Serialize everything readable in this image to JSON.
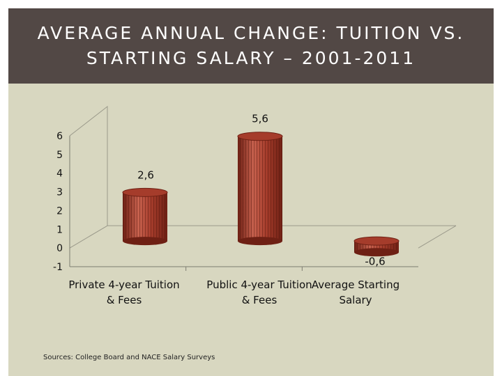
{
  "slide": {
    "title_line1": "AVERAGE ANNUAL CHANGE: TUITION VS.",
    "title_line2": "STARTING SALARY – 2001-2011",
    "source": "Sources: College Board and NACE Salary Surveys"
  },
  "colors": {
    "title_bg": "#524845",
    "chart_bg": "#d8d7c0",
    "bar": "#a53c2b",
    "bar_light": "#c8624f",
    "bar_dark": "#6e2014"
  },
  "chart_data": {
    "type": "bar",
    "style": "3d-cylinder",
    "categories": [
      [
        "Private 4-year Tuition",
        "& Fees"
      ],
      [
        "Public 4-year Tuition",
        "& Fees"
      ],
      [
        "Average Starting",
        "Salary"
      ]
    ],
    "values": [
      2.6,
      5.6,
      -0.6
    ],
    "data_labels": [
      "2,6",
      "5,6",
      "-0,6"
    ],
    "yticks": [
      "6",
      "5",
      "4",
      "3",
      "2",
      "1",
      "0",
      "-1"
    ],
    "ytick_values": [
      6,
      5,
      4,
      3,
      2,
      1,
      0,
      -1
    ],
    "ylim": [
      -1,
      6
    ],
    "title": "",
    "xlabel": "",
    "ylabel": "",
    "grid": false,
    "legend": "none"
  }
}
